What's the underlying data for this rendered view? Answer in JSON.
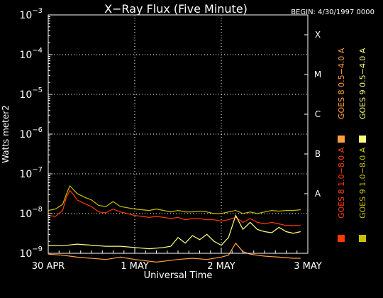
{
  "chart_data": {
    "type": "line",
    "title": "X−Ray Flux (Five Minute)",
    "begin_label": "BEGIN: 4/30/1997 0000",
    "xlabel": "Universal Time",
    "ylabel": "Watts meter2",
    "x_unit": "hours since 30 APR 1997 0000 UT",
    "xlim": [
      0,
      72
    ],
    "x_ticks": [
      {
        "value": 0,
        "label": "30 APR"
      },
      {
        "value": 24,
        "label": "1 MAY"
      },
      {
        "value": 48,
        "label": "2 MAY"
      },
      {
        "value": 72,
        "label": "3 MAY"
      }
    ],
    "y_scale": "log",
    "ylim_exponent": [
      -9,
      -3
    ],
    "y_ticks": [
      {
        "exp": -9,
        "base": "10",
        "sup": "−9"
      },
      {
        "exp": -8,
        "base": "10",
        "sup": "−8"
      },
      {
        "exp": -7,
        "base": "10",
        "sup": "−7"
      },
      {
        "exp": -6,
        "base": "10",
        "sup": "−6"
      },
      {
        "exp": -5,
        "base": "10",
        "sup": "−5"
      },
      {
        "exp": -4,
        "base": "10",
        "sup": "−4"
      },
      {
        "exp": -3,
        "base": "10",
        "sup": "−3"
      }
    ],
    "flare_classes": [
      {
        "label": "A",
        "exp": -7.5
      },
      {
        "label": "B",
        "exp": -6.5
      },
      {
        "label": "C",
        "exp": -5.5
      },
      {
        "label": "M",
        "exp": -4.5
      },
      {
        "label": "X",
        "exp": -3.5
      }
    ],
    "grid": {
      "horizontal_dotted": true,
      "vertical_dotted_at_days": true
    },
    "legend_position": "right-vertical",
    "series": [
      {
        "name": "GOES 8 1.0−8.0 A",
        "color": "#ff3a00",
        "points": [
          [
            0,
            9e-09
          ],
          [
            2,
            8.5e-09
          ],
          [
            4,
            1.2e-08
          ],
          [
            5,
            2.5e-08
          ],
          [
            6,
            3.8e-08
          ],
          [
            7,
            3e-08
          ],
          [
            8,
            2.2e-08
          ],
          [
            10,
            1.8e-08
          ],
          [
            12,
            1.5e-08
          ],
          [
            14,
            1.1e-08
          ],
          [
            16,
            1.05e-08
          ],
          [
            18,
            1.3e-08
          ],
          [
            20,
            1.1e-08
          ],
          [
            22,
            1e-08
          ],
          [
            24,
            9e-09
          ],
          [
            26,
            8.5e-09
          ],
          [
            28,
            8e-09
          ],
          [
            30,
            8.5e-09
          ],
          [
            32,
            8e-09
          ],
          [
            34,
            7.5e-09
          ],
          [
            36,
            8e-09
          ],
          [
            38,
            7e-09
          ],
          [
            40,
            7.5e-09
          ],
          [
            42,
            7.5e-09
          ],
          [
            44,
            7e-09
          ],
          [
            46,
            7e-09
          ],
          [
            48,
            6.5e-09
          ],
          [
            50,
            7e-09
          ],
          [
            52,
            8e-09
          ],
          [
            54,
            6e-09
          ],
          [
            56,
            7.5e-09
          ],
          [
            58,
            6e-09
          ],
          [
            60,
            5.5e-09
          ],
          [
            62,
            6e-09
          ],
          [
            64,
            5.5e-09
          ],
          [
            66,
            5e-09
          ],
          [
            68,
            5e-09
          ],
          [
            70,
            5e-09
          ]
        ]
      },
      {
        "name": "GOES 9 1.0−8.0 A",
        "color": "#c8c000",
        "points": [
          [
            0,
            1.2e-08
          ],
          [
            2,
            1.3e-08
          ],
          [
            4,
            1.7e-08
          ],
          [
            5,
            3e-08
          ],
          [
            6,
            5e-08
          ],
          [
            7,
            4e-08
          ],
          [
            8,
            3.2e-08
          ],
          [
            10,
            2.6e-08
          ],
          [
            12,
            2.2e-08
          ],
          [
            14,
            1.6e-08
          ],
          [
            16,
            1.5e-08
          ],
          [
            18,
            2e-08
          ],
          [
            20,
            1.5e-08
          ],
          [
            22,
            1.4e-08
          ],
          [
            24,
            1.3e-08
          ],
          [
            26,
            1.25e-08
          ],
          [
            28,
            1.2e-08
          ],
          [
            30,
            1.3e-08
          ],
          [
            32,
            1.2e-08
          ],
          [
            34,
            1.1e-08
          ],
          [
            36,
            1.2e-08
          ],
          [
            38,
            1.1e-08
          ],
          [
            40,
            1.1e-08
          ],
          [
            42,
            1.15e-08
          ],
          [
            44,
            1.1e-08
          ],
          [
            46,
            1e-08
          ],
          [
            48,
            1e-08
          ],
          [
            50,
            1.1e-08
          ],
          [
            52,
            1.2e-08
          ],
          [
            54,
            1e-08
          ],
          [
            56,
            1.1e-08
          ],
          [
            58,
            1e-08
          ],
          [
            60,
            1.1e-08
          ],
          [
            62,
            1.2e-08
          ],
          [
            64,
            1.15e-08
          ],
          [
            66,
            1.2e-08
          ],
          [
            68,
            1.2e-08
          ],
          [
            70,
            1.25e-08
          ]
        ]
      },
      {
        "name": "GOES 8 0.5−4.0 A",
        "color": "#ff9f40",
        "points": [
          [
            0,
            9.5e-10
          ],
          [
            4,
            9e-10
          ],
          [
            8,
            8e-10
          ],
          [
            16,
            7e-10
          ],
          [
            20,
            8e-10
          ],
          [
            24,
            7e-10
          ],
          [
            30,
            6e-10
          ],
          [
            36,
            7e-10
          ],
          [
            40,
            7.5e-10
          ],
          [
            44,
            7e-10
          ],
          [
            48,
            8e-10
          ],
          [
            50,
            9e-10
          ],
          [
            52,
            1.8e-09
          ],
          [
            54,
            1.1e-09
          ],
          [
            56,
            9.5e-10
          ],
          [
            58,
            9e-10
          ],
          [
            60,
            8.5e-10
          ],
          [
            64,
            8e-10
          ],
          [
            68,
            7.5e-10
          ],
          [
            70,
            7.5e-10
          ]
        ]
      },
      {
        "name": "GOES 9 0.5−4.0 A",
        "color": "#ffff80",
        "points": [
          [
            0,
            1.6e-09
          ],
          [
            4,
            1.55e-09
          ],
          [
            8,
            1.7e-09
          ],
          [
            12,
            1.6e-09
          ],
          [
            16,
            1.5e-09
          ],
          [
            20,
            1.5e-09
          ],
          [
            24,
            1.4e-09
          ],
          [
            28,
            1.3e-09
          ],
          [
            32,
            1.4e-09
          ],
          [
            34,
            1.5e-09
          ],
          [
            36,
            2.5e-09
          ],
          [
            38,
            1.8e-09
          ],
          [
            40,
            2.8e-09
          ],
          [
            42,
            2.2e-09
          ],
          [
            44,
            3e-09
          ],
          [
            46,
            2e-09
          ],
          [
            48,
            1.6e-09
          ],
          [
            50,
            2.5e-09
          ],
          [
            52,
            9e-09
          ],
          [
            54,
            4e-09
          ],
          [
            56,
            6e-09
          ],
          [
            58,
            4e-09
          ],
          [
            60,
            3.5e-09
          ],
          [
            62,
            3.3e-09
          ],
          [
            64,
            4.5e-09
          ],
          [
            66,
            3.5e-09
          ],
          [
            68,
            3.2e-09
          ],
          [
            70,
            3.5e-09
          ]
        ]
      }
    ]
  }
}
